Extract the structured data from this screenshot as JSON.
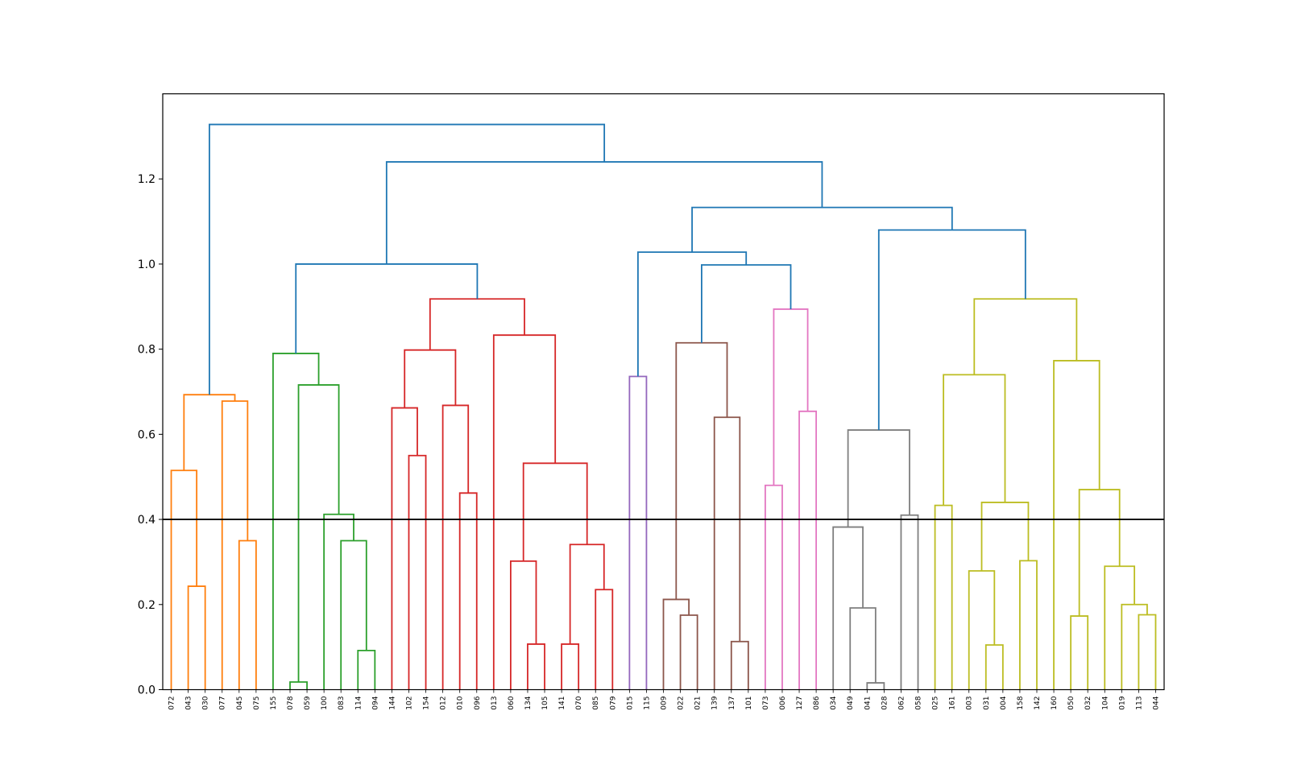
{
  "chart_data": {
    "type": "dendrogram",
    "title": "",
    "xlabel": "",
    "ylabel": "",
    "ylim": [
      0,
      1.4
    ],
    "yticks": [
      "0.0",
      "0.2",
      "0.4",
      "0.6",
      "0.8",
      "1.0",
      "1.2"
    ],
    "threshold": 0.4,
    "threshold_color": "#000000",
    "leaves": [
      "072",
      "043",
      "030",
      "077",
      "045",
      "075",
      "155",
      "078",
      "059",
      "100",
      "083",
      "114",
      "094",
      "144",
      "102",
      "154",
      "012",
      "010",
      "096",
      "013",
      "060",
      "134",
      "105",
      "141",
      "070",
      "085",
      "079",
      "015",
      "115",
      "009",
      "022",
      "021",
      "139",
      "137",
      "101",
      "073",
      "006",
      "127",
      "086",
      "034",
      "049",
      "041",
      "028",
      "062",
      "058",
      "025",
      "161",
      "003",
      "031",
      "004",
      "158",
      "142",
      "160",
      "050",
      "032",
      "104",
      "019",
      "113",
      "044"
    ],
    "colors": {
      "orange": "#ff7f0e",
      "green": "#2ca02c",
      "red": "#d62728",
      "purple": "#9467bd",
      "brown": "#8c564b",
      "pink": "#e377c2",
      "gray": "#7f7f7f",
      "olive": "#bcbd22",
      "blue": "#1f77b4"
    },
    "merges": [
      {
        "a": "L1",
        "b": "L2",
        "h": 0.243,
        "color": "orange"
      },
      {
        "a": "L0",
        "b": "M0",
        "h": 0.515,
        "color": "orange"
      },
      {
        "a": "L4",
        "b": "L5",
        "h": 0.35,
        "color": "orange"
      },
      {
        "a": "L3",
        "b": "M2",
        "h": 0.678,
        "color": "orange"
      },
      {
        "a": "M1",
        "b": "M3",
        "h": 0.693,
        "color": "orange"
      },
      {
        "a": "L7",
        "b": "L8",
        "h": 0.018,
        "color": "green"
      },
      {
        "a": "L11",
        "b": "L12",
        "h": 0.092,
        "color": "green"
      },
      {
        "a": "L10",
        "b": "M6",
        "h": 0.35,
        "color": "green"
      },
      {
        "a": "L9",
        "b": "M7",
        "h": 0.412,
        "color": "green"
      },
      {
        "a": "M5",
        "b": "M8",
        "h": 0.716,
        "color": "green"
      },
      {
        "a": "L6",
        "b": "M9",
        "h": 0.79,
        "color": "green"
      },
      {
        "a": "L14",
        "b": "L15",
        "h": 0.55,
        "color": "red"
      },
      {
        "a": "L13",
        "b": "M11",
        "h": 0.662,
        "color": "red"
      },
      {
        "a": "L17",
        "b": "L18",
        "h": 0.462,
        "color": "red"
      },
      {
        "a": "L16",
        "b": "M13",
        "h": 0.668,
        "color": "red"
      },
      {
        "a": "M12",
        "b": "M14",
        "h": 0.798,
        "color": "red"
      },
      {
        "a": "L21",
        "b": "L22",
        "h": 0.107,
        "color": "red"
      },
      {
        "a": "L20",
        "b": "M16",
        "h": 0.302,
        "color": "red"
      },
      {
        "a": "L23",
        "b": "L24",
        "h": 0.107,
        "color": "red"
      },
      {
        "a": "L25",
        "b": "L26",
        "h": 0.235,
        "color": "red"
      },
      {
        "a": "M18",
        "b": "M19",
        "h": 0.341,
        "color": "red"
      },
      {
        "a": "M17",
        "b": "M20",
        "h": 0.532,
        "color": "red"
      },
      {
        "a": "L19",
        "b": "M21",
        "h": 0.833,
        "color": "red"
      },
      {
        "a": "M15",
        "b": "M22",
        "h": 0.918,
        "color": "red"
      },
      {
        "a": "M10",
        "b": "M23",
        "h": 1.0,
        "color": "blue"
      },
      {
        "a": "L27",
        "b": "L28",
        "h": 0.736,
        "color": "purple"
      },
      {
        "a": "L30",
        "b": "L31",
        "h": 0.175,
        "color": "brown"
      },
      {
        "a": "L29",
        "b": "M26",
        "h": 0.212,
        "color": "brown"
      },
      {
        "a": "L33",
        "b": "L34",
        "h": 0.113,
        "color": "brown"
      },
      {
        "a": "L32",
        "b": "M28",
        "h": 0.64,
        "color": "brown"
      },
      {
        "a": "M27",
        "b": "M29",
        "h": 0.815,
        "color": "brown"
      },
      {
        "a": "L37",
        "b": "L38",
        "h": 0.654,
        "color": "pink"
      },
      {
        "a": "L35",
        "b": "L36",
        "h": 0.48,
        "color": "pink"
      },
      {
        "a": "M32",
        "b": "M31",
        "h": 0.894,
        "color": "pink"
      },
      {
        "a": "M30",
        "b": "M33",
        "h": 0.998,
        "color": "blue"
      },
      {
        "a": "M25",
        "b": "M34",
        "h": 1.028,
        "color": "blue"
      },
      {
        "a": "L41",
        "b": "L42",
        "h": 0.016,
        "color": "gray"
      },
      {
        "a": "L40",
        "b": "M36",
        "h": 0.192,
        "color": "gray"
      },
      {
        "a": "L39",
        "b": "M37",
        "h": 0.382,
        "color": "gray"
      },
      {
        "a": "L43",
        "b": "L44",
        "h": 0.41,
        "color": "gray"
      },
      {
        "a": "M38",
        "b": "M39",
        "h": 0.61,
        "color": "gray"
      },
      {
        "a": "L45",
        "b": "L46",
        "h": 0.433,
        "color": "olive"
      },
      {
        "a": "L48",
        "b": "L49",
        "h": 0.105,
        "color": "olive"
      },
      {
        "a": "L47",
        "b": "M42",
        "h": 0.279,
        "color": "olive"
      },
      {
        "a": "L50",
        "b": "L51",
        "h": 0.303,
        "color": "olive"
      },
      {
        "a": "M43",
        "b": "M44",
        "h": 0.44,
        "color": "olive"
      },
      {
        "a": "M41",
        "b": "M45",
        "h": 0.74,
        "color": "olive"
      },
      {
        "a": "L53",
        "b": "L54",
        "h": 0.173,
        "color": "olive"
      },
      {
        "a": "L57",
        "b": "L58",
        "h": 0.176,
        "color": "olive"
      },
      {
        "a": "L56",
        "b": "M48",
        "h": 0.2,
        "color": "olive"
      },
      {
        "a": "L55",
        "b": "M49",
        "h": 0.29,
        "color": "olive"
      },
      {
        "a": "M47",
        "b": "M50",
        "h": 0.47,
        "color": "olive"
      },
      {
        "a": "L52",
        "b": "M51",
        "h": 0.773,
        "color": "olive"
      },
      {
        "a": "M46",
        "b": "M52",
        "h": 0.918,
        "color": "olive"
      },
      {
        "a": "M40",
        "b": "M53",
        "h": 1.08,
        "color": "blue"
      },
      {
        "a": "M35",
        "b": "M54",
        "h": 1.133,
        "color": "blue"
      },
      {
        "a": "M24",
        "b": "M55",
        "h": 1.24,
        "color": "blue"
      },
      {
        "a": "M4",
        "b": "M56",
        "h": 1.328,
        "color": "blue"
      }
    ]
  }
}
